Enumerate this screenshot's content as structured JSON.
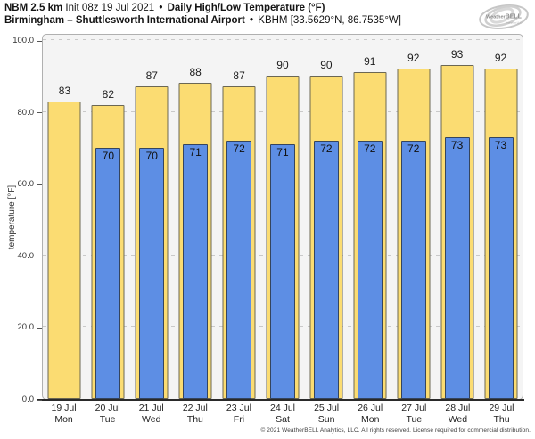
{
  "header": {
    "model": "NBM 2.5 km",
    "init": "Init 08z 19 Jul 2021",
    "bullet": "•",
    "product": "Daily High/Low Temperature (°F)",
    "location": "Birmingham – Shuttlesworth International Airport",
    "station": "KBHM [33.5629°N, 86.7535°W]",
    "logo_weather": "Weather",
    "logo_bell": "BELL",
    "logo_sub": "Analytics LLC"
  },
  "chart_data": {
    "type": "bar",
    "title": "NBM 2.5 km Init 08z 19 Jul 2021 • Daily High/Low Temperature (°F)",
    "subtitle": "Birmingham – Shuttlesworth International Airport • KBHM [33.5629°N, 86.7535°W]",
    "xlabel": "",
    "ylabel": "temperature [°F]",
    "ylim": [
      0,
      100
    ],
    "ytick_values": [
      0,
      20,
      40,
      60,
      80,
      100
    ],
    "ytick_labels": [
      "0.0",
      "20.0",
      "40.0",
      "60.0",
      "80.0",
      "100.0"
    ],
    "grid": "horizontal-dashed",
    "legend_position": "none",
    "categories": [
      {
        "date": "19 Jul",
        "day": "Mon"
      },
      {
        "date": "20 Jul",
        "day": "Tue"
      },
      {
        "date": "21 Jul",
        "day": "Wed"
      },
      {
        "date": "22 Jul",
        "day": "Thu"
      },
      {
        "date": "23 Jul",
        "day": "Fri"
      },
      {
        "date": "24 Jul",
        "day": "Sat"
      },
      {
        "date": "25 Jul",
        "day": "Sun"
      },
      {
        "date": "26 Jul",
        "day": "Mon"
      },
      {
        "date": "27 Jul",
        "day": "Tue"
      },
      {
        "date": "28 Jul",
        "day": "Wed"
      },
      {
        "date": "29 Jul",
        "day": "Thu"
      }
    ],
    "series": [
      {
        "name": "Daily High",
        "color": "#fbdc72",
        "border_color": "#6b6753",
        "values": [
          83,
          82,
          87,
          88,
          87,
          90,
          90,
          91,
          92,
          93,
          92
        ]
      },
      {
        "name": "Daily Low",
        "color": "#5d8ee4",
        "border_color": "#35455e",
        "values": [
          null,
          70,
          70,
          71,
          72,
          71,
          72,
          72,
          72,
          73,
          73
        ]
      }
    ],
    "colors": {
      "plot_bg": "#f4f4f4",
      "grid": "#c9c9c9",
      "axis": "#2a2a2a",
      "plot_border": "#b0b0b0"
    }
  },
  "footer": {
    "copyright": "© 2021 WeatherBELL Analytics, LLC. All rights reserved. License required for commercial distribution."
  }
}
